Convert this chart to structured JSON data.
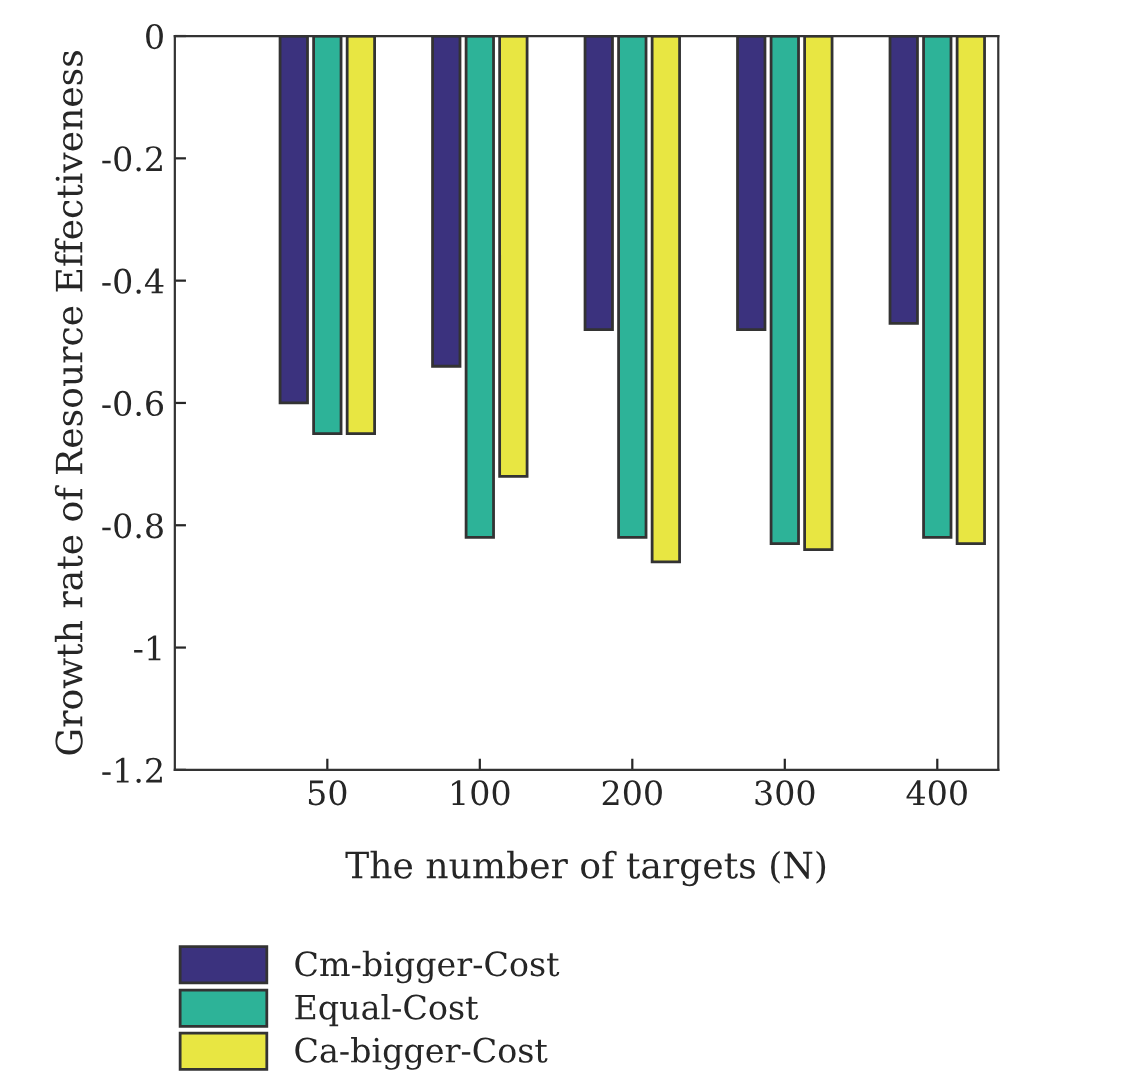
{
  "chart_data": {
    "type": "bar",
    "xlabel": "The number of targets (N)",
    "ylabel": "Growth rate of Resource Effectiveness",
    "categories": [
      "50",
      "100",
      "200",
      "300",
      "400"
    ],
    "series": [
      {
        "name": "Cm-bigger-Cost",
        "color": "#3b327e",
        "values": [
          -0.6,
          -0.54,
          -0.48,
          -0.48,
          -0.47
        ]
      },
      {
        "name": "Equal-Cost",
        "color": "#2db398",
        "values": [
          -0.65,
          -0.82,
          -0.82,
          -0.83,
          -0.82
        ]
      },
      {
        "name": "Ca-bigger-Cost",
        "color": "#e8e642",
        "values": [
          -0.65,
          -0.72,
          -0.86,
          -0.84,
          -0.83
        ]
      }
    ],
    "ylim": [
      -1.2,
      0
    ],
    "yticks": [
      -1.2,
      -1,
      -0.8,
      -0.6,
      -0.4,
      -0.2,
      0
    ],
    "grid": false,
    "legend": "bottom"
  }
}
